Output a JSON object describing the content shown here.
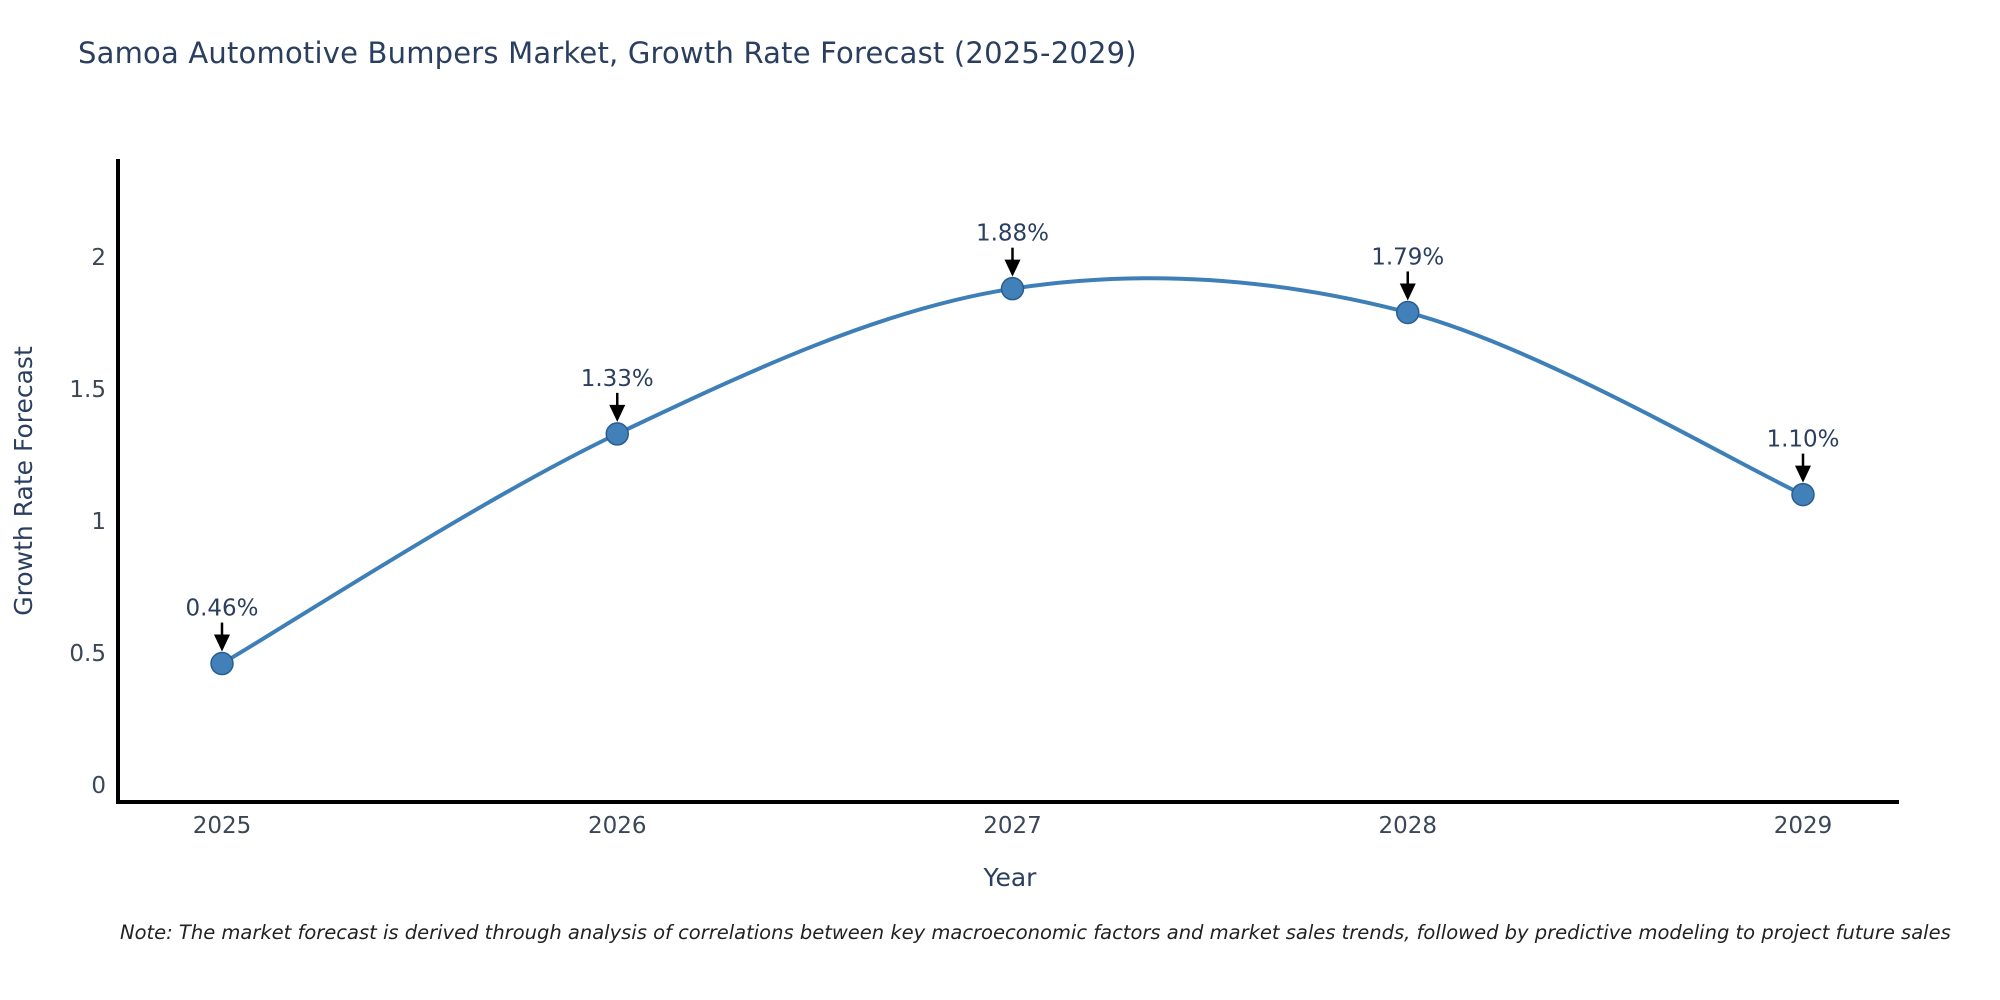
{
  "page": {
    "title": "Samoa Automotive Bumpers Market, Growth Rate Forecast (2025-2029)",
    "note": "Note: The market forecast is derived through analysis of correlations between key macroeconomic factors and market sales trends, followed by predictive modeling to project future sales"
  },
  "chart_data": {
    "type": "line",
    "line_shape": "spline",
    "title": "Samoa Automotive Bumpers Market, Growth Rate Forecast (2025-2029)",
    "xlabel": "Year",
    "ylabel": "Growth Rate Forecast",
    "x": [
      2025,
      2026,
      2027,
      2028,
      2029
    ],
    "x_tick_labels": [
      "2025",
      "2026",
      "2027",
      "2028",
      "2029"
    ],
    "series": [
      {
        "name": "Growth Rate Forecast",
        "values": [
          0.46,
          1.33,
          1.88,
          1.79,
          1.1
        ]
      }
    ],
    "point_labels": [
      "0.46%",
      "1.33%",
      "1.88%",
      "1.79%",
      "1.10%"
    ],
    "y_ticks": [
      0,
      0.5,
      1,
      1.5,
      2
    ],
    "y_tick_labels": [
      "0",
      "0.5",
      "1",
      "1.5",
      "2"
    ],
    "ylim": [
      -0.06,
      2.37
    ],
    "grid": false,
    "legend": "none",
    "annotation_style": "percent labels with black down-arrows pointing at each marker",
    "colors": {
      "line": "#3f7fb8",
      "marker": "#4180b8",
      "marker_edge": "#2a5d8f",
      "axis": "#000000",
      "title_text": "#2a3f5f",
      "tick_text": "#3b4656",
      "annotation_text": "#2a3f5f",
      "arrow": "#000000",
      "note_text": "#222222",
      "background": "#ffffff"
    }
  }
}
